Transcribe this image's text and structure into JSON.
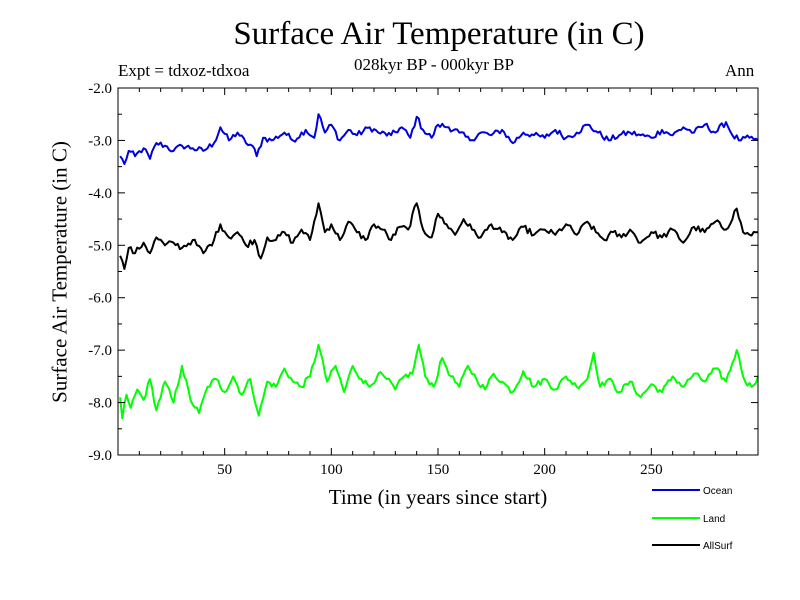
{
  "chart_data": {
    "type": "line",
    "title": "Surface Air Temperature (in C)",
    "subtitle": "028kyr BP - 000kyr BP",
    "expt_label": "Expt = tdxoz-tdxoa",
    "season_label": "Ann",
    "xlabel": "Time (in years since start)",
    "ylabel": "Surface Air Temperature (in C)",
    "xlim": [
      0,
      300
    ],
    "ylim": [
      -9.0,
      -2.0
    ],
    "x_ticks": [
      50,
      100,
      150,
      200,
      250
    ],
    "y_ticks": [
      -9.0,
      -8.0,
      -7.0,
      -6.0,
      -5.0,
      -4.0,
      -3.0,
      -2.0
    ],
    "y_tick_labels": [
      "-9.0",
      "-8.0",
      "-7.0",
      "-6.0",
      "-5.0",
      "-4.0",
      "-3.0",
      "-2.0"
    ],
    "grid": false,
    "legend_position": "bottom-right, below plot",
    "series": [
      {
        "name": "Ocean",
        "color": "#0000dd",
        "anchors": [
          [
            1,
            -3.3
          ],
          [
            3,
            -3.45
          ],
          [
            5,
            -3.2
          ],
          [
            8,
            -3.3
          ],
          [
            12,
            -3.15
          ],
          [
            15,
            -3.35
          ],
          [
            18,
            -3.05
          ],
          [
            22,
            -3.1
          ],
          [
            26,
            -3.2
          ],
          [
            30,
            -3.1
          ],
          [
            35,
            -3.15
          ],
          [
            40,
            -3.2
          ],
          [
            45,
            -3.05
          ],
          [
            48,
            -2.75
          ],
          [
            52,
            -3.0
          ],
          [
            56,
            -2.85
          ],
          [
            60,
            -3.05
          ],
          [
            63,
            -3.1
          ],
          [
            65,
            -3.3
          ],
          [
            68,
            -2.95
          ],
          [
            72,
            -3.0
          ],
          [
            78,
            -2.85
          ],
          [
            82,
            -3.0
          ],
          [
            88,
            -2.8
          ],
          [
            92,
            -2.95
          ],
          [
            94,
            -2.5
          ],
          [
            97,
            -2.85
          ],
          [
            100,
            -2.7
          ],
          [
            104,
            -3.0
          ],
          [
            108,
            -2.8
          ],
          [
            112,
            -2.9
          ],
          [
            118,
            -2.75
          ],
          [
            122,
            -2.85
          ],
          [
            128,
            -2.9
          ],
          [
            133,
            -2.75
          ],
          [
            137,
            -2.95
          ],
          [
            140,
            -2.55
          ],
          [
            143,
            -2.8
          ],
          [
            147,
            -2.95
          ],
          [
            150,
            -2.7
          ],
          [
            155,
            -2.75
          ],
          [
            160,
            -2.85
          ],
          [
            165,
            -3.0
          ],
          [
            170,
            -2.85
          ],
          [
            175,
            -2.9
          ],
          [
            180,
            -2.8
          ],
          [
            185,
            -3.05
          ],
          [
            190,
            -2.85
          ],
          [
            195,
            -2.9
          ],
          [
            200,
            -2.95
          ],
          [
            205,
            -2.8
          ],
          [
            210,
            -2.95
          ],
          [
            215,
            -2.85
          ],
          [
            220,
            -2.7
          ],
          [
            225,
            -2.85
          ],
          [
            230,
            -3.0
          ],
          [
            235,
            -2.9
          ],
          [
            240,
            -2.85
          ],
          [
            245,
            -2.9
          ],
          [
            250,
            -2.95
          ],
          [
            255,
            -2.8
          ],
          [
            260,
            -2.9
          ],
          [
            265,
            -2.75
          ],
          [
            270,
            -2.85
          ],
          [
            275,
            -2.7
          ],
          [
            280,
            -2.85
          ],
          [
            285,
            -2.65
          ],
          [
            288,
            -2.9
          ],
          [
            292,
            -3.0
          ],
          [
            296,
            -2.95
          ],
          [
            300,
            -3.0
          ]
        ]
      },
      {
        "name": "Land",
        "color": "#00ff00",
        "anchors": [
          [
            1,
            -7.9
          ],
          [
            2,
            -8.3
          ],
          [
            4,
            -7.85
          ],
          [
            6,
            -8.1
          ],
          [
            9,
            -7.75
          ],
          [
            12,
            -7.95
          ],
          [
            15,
            -7.55
          ],
          [
            18,
            -8.15
          ],
          [
            22,
            -7.6
          ],
          [
            26,
            -8.0
          ],
          [
            30,
            -7.3
          ],
          [
            34,
            -7.95
          ],
          [
            38,
            -8.2
          ],
          [
            42,
            -7.7
          ],
          [
            46,
            -7.55
          ],
          [
            50,
            -7.8
          ],
          [
            54,
            -7.5
          ],
          [
            58,
            -7.85
          ],
          [
            62,
            -7.55
          ],
          [
            66,
            -8.25
          ],
          [
            70,
            -7.6
          ],
          [
            74,
            -7.7
          ],
          [
            78,
            -7.35
          ],
          [
            82,
            -7.6
          ],
          [
            86,
            -7.7
          ],
          [
            90,
            -7.5
          ],
          [
            94,
            -6.9
          ],
          [
            98,
            -7.6
          ],
          [
            102,
            -7.3
          ],
          [
            106,
            -7.8
          ],
          [
            110,
            -7.3
          ],
          [
            114,
            -7.55
          ],
          [
            118,
            -7.7
          ],
          [
            122,
            -7.45
          ],
          [
            126,
            -7.55
          ],
          [
            130,
            -7.75
          ],
          [
            134,
            -7.5
          ],
          [
            138,
            -7.45
          ],
          [
            141,
            -6.9
          ],
          [
            144,
            -7.5
          ],
          [
            148,
            -7.7
          ],
          [
            152,
            -7.15
          ],
          [
            156,
            -7.5
          ],
          [
            160,
            -7.7
          ],
          [
            164,
            -7.3
          ],
          [
            168,
            -7.55
          ],
          [
            172,
            -7.75
          ],
          [
            176,
            -7.45
          ],
          [
            180,
            -7.6
          ],
          [
            185,
            -7.8
          ],
          [
            190,
            -7.4
          ],
          [
            195,
            -7.7
          ],
          [
            200,
            -7.55
          ],
          [
            205,
            -7.75
          ],
          [
            210,
            -7.5
          ],
          [
            215,
            -7.7
          ],
          [
            220,
            -7.55
          ],
          [
            223,
            -7.05
          ],
          [
            226,
            -7.7
          ],
          [
            230,
            -7.55
          ],
          [
            235,
            -7.8
          ],
          [
            240,
            -7.6
          ],
          [
            245,
            -7.9
          ],
          [
            250,
            -7.65
          ],
          [
            255,
            -7.8
          ],
          [
            260,
            -7.5
          ],
          [
            265,
            -7.7
          ],
          [
            270,
            -7.45
          ],
          [
            275,
            -7.6
          ],
          [
            280,
            -7.35
          ],
          [
            285,
            -7.6
          ],
          [
            290,
            -7.0
          ],
          [
            294,
            -7.6
          ],
          [
            297,
            -7.7
          ],
          [
            300,
            -7.5
          ]
        ]
      },
      {
        "name": "AllSurf",
        "color": "#000000",
        "anchors": [
          [
            1,
            -5.2
          ],
          [
            3,
            -5.45
          ],
          [
            5,
            -5.05
          ],
          [
            8,
            -5.15
          ],
          [
            12,
            -4.95
          ],
          [
            15,
            -5.15
          ],
          [
            18,
            -4.85
          ],
          [
            22,
            -5.0
          ],
          [
            26,
            -4.95
          ],
          [
            30,
            -5.05
          ],
          [
            35,
            -4.9
          ],
          [
            40,
            -5.15
          ],
          [
            45,
            -4.9
          ],
          [
            48,
            -4.6
          ],
          [
            52,
            -4.85
          ],
          [
            56,
            -4.75
          ],
          [
            60,
            -5.0
          ],
          [
            64,
            -4.9
          ],
          [
            67,
            -5.25
          ],
          [
            70,
            -4.85
          ],
          [
            74,
            -4.9
          ],
          [
            78,
            -4.75
          ],
          [
            82,
            -4.95
          ],
          [
            86,
            -4.7
          ],
          [
            90,
            -4.9
          ],
          [
            94,
            -4.2
          ],
          [
            97,
            -4.75
          ],
          [
            100,
            -4.6
          ],
          [
            104,
            -4.9
          ],
          [
            108,
            -4.55
          ],
          [
            112,
            -4.75
          ],
          [
            116,
            -4.9
          ],
          [
            120,
            -4.6
          ],
          [
            124,
            -4.7
          ],
          [
            128,
            -4.9
          ],
          [
            132,
            -4.65
          ],
          [
            136,
            -4.7
          ],
          [
            140,
            -4.2
          ],
          [
            143,
            -4.7
          ],
          [
            147,
            -4.85
          ],
          [
            150,
            -4.4
          ],
          [
            154,
            -4.6
          ],
          [
            158,
            -4.8
          ],
          [
            162,
            -4.5
          ],
          [
            166,
            -4.7
          ],
          [
            170,
            -4.85
          ],
          [
            175,
            -4.6
          ],
          [
            180,
            -4.75
          ],
          [
            185,
            -4.9
          ],
          [
            190,
            -4.65
          ],
          [
            195,
            -4.8
          ],
          [
            200,
            -4.7
          ],
          [
            205,
            -4.8
          ],
          [
            210,
            -4.6
          ],
          [
            215,
            -4.8
          ],
          [
            220,
            -4.55
          ],
          [
            224,
            -4.75
          ],
          [
            228,
            -4.9
          ],
          [
            232,
            -4.75
          ],
          [
            236,
            -4.85
          ],
          [
            240,
            -4.7
          ],
          [
            245,
            -4.95
          ],
          [
            250,
            -4.75
          ],
          [
            255,
            -4.85
          ],
          [
            260,
            -4.7
          ],
          [
            265,
            -4.95
          ],
          [
            270,
            -4.65
          ],
          [
            275,
            -4.75
          ],
          [
            280,
            -4.55
          ],
          [
            285,
            -4.7
          ],
          [
            290,
            -4.3
          ],
          [
            293,
            -4.75
          ],
          [
            296,
            -4.8
          ],
          [
            300,
            -4.75
          ]
        ]
      }
    ]
  }
}
